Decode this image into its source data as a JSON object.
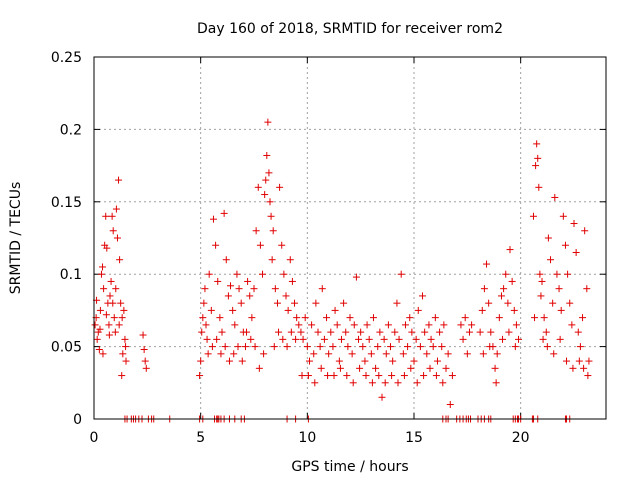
{
  "chart_data": {
    "type": "scatter",
    "title": "Day 160 of 2018, SRMTID for receiver rom2",
    "xlabel": "GPS time / hours",
    "ylabel": "SRMTID / TECUs",
    "xlim": [
      0,
      24
    ],
    "ylim": [
      0,
      0.25
    ],
    "x_ticks": [
      "0",
      "5",
      "10",
      "15",
      "20"
    ],
    "x_tick_values": [
      0,
      5,
      10,
      15,
      20
    ],
    "y_ticks": [
      "0",
      "0.05",
      "0.1",
      "0.15",
      "0.2",
      "0.25"
    ],
    "y_tick_values": [
      0,
      0.05,
      0.1,
      0.15,
      0.2,
      0.25
    ],
    "grid": true,
    "marker": "+",
    "color": "#e00000",
    "series": [
      {
        "name": "rom2",
        "points": [
          [
            0.05,
            0.065
          ],
          [
            0.1,
            0.07
          ],
          [
            0.15,
            0.055
          ],
          [
            0.2,
            0.06
          ],
          [
            0.25,
            0.048
          ],
          [
            0.3,
            0.075
          ],
          [
            0.35,
            0.1
          ],
          [
            0.4,
            0.105
          ],
          [
            0.45,
            0.09
          ],
          [
            0.5,
            0.12
          ],
          [
            0.55,
            0.14
          ],
          [
            0.6,
            0.118
          ],
          [
            0.65,
            0.08
          ],
          [
            0.7,
            0.065
          ],
          [
            0.75,
            0.085
          ],
          [
            0.8,
            0.095
          ],
          [
            0.85,
            0.14
          ],
          [
            0.9,
            0.13
          ],
          [
            0.95,
            0.07
          ],
          [
            1.0,
            0.06
          ],
          [
            1.05,
            0.145
          ],
          [
            1.1,
            0.125
          ],
          [
            1.15,
            0.165
          ],
          [
            1.2,
            0.11
          ],
          [
            1.25,
            0.08
          ],
          [
            1.3,
            0.03
          ],
          [
            1.35,
            0.045
          ],
          [
            1.4,
            0.075
          ],
          [
            1.45,
            0.055
          ],
          [
            1.5,
            0.04
          ],
          [
            0.12,
            0.082
          ],
          [
            0.28,
            0.062
          ],
          [
            0.42,
            0.045
          ],
          [
            0.58,
            0.072
          ],
          [
            0.72,
            0.058
          ],
          [
            0.88,
            0.08
          ],
          [
            1.02,
            0.09
          ],
          [
            1.18,
            0.065
          ],
          [
            1.32,
            0.07
          ],
          [
            1.48,
            0.05
          ],
          [
            2.3,
            0.058
          ],
          [
            2.35,
            0.048
          ],
          [
            2.4,
            0.04
          ],
          [
            2.45,
            0.035
          ],
          [
            4.95,
            0.03
          ],
          [
            5.0,
            0.04
          ],
          [
            5.05,
            0.06
          ],
          [
            5.1,
            0.07
          ],
          [
            5.15,
            0.08
          ],
          [
            5.2,
            0.09
          ],
          [
            5.25,
            0.065
          ],
          [
            5.3,
            0.055
          ],
          [
            5.4,
            0.1
          ],
          [
            5.5,
            0.075
          ],
          [
            5.6,
            0.138
          ],
          [
            5.7,
            0.12
          ],
          [
            5.8,
            0.095
          ],
          [
            5.9,
            0.07
          ],
          [
            6.0,
            0.06
          ],
          [
            6.1,
            0.142
          ],
          [
            6.2,
            0.11
          ],
          [
            6.3,
            0.085
          ],
          [
            6.4,
            0.092
          ],
          [
            6.5,
            0.075
          ],
          [
            6.6,
            0.065
          ],
          [
            6.7,
            0.1
          ],
          [
            6.8,
            0.09
          ],
          [
            6.9,
            0.08
          ],
          [
            7.0,
            0.06
          ],
          [
            7.1,
            0.05
          ],
          [
            7.2,
            0.095
          ],
          [
            7.3,
            0.085
          ],
          [
            7.4,
            0.07
          ],
          [
            7.5,
            0.09
          ],
          [
            7.6,
            0.13
          ],
          [
            7.7,
            0.16
          ],
          [
            7.8,
            0.12
          ],
          [
            7.9,
            0.1
          ],
          [
            8.0,
            0.155
          ],
          [
            8.05,
            0.165
          ],
          [
            8.1,
            0.182
          ],
          [
            8.15,
            0.205
          ],
          [
            8.2,
            0.17
          ],
          [
            8.25,
            0.15
          ],
          [
            8.3,
            0.14
          ],
          [
            8.35,
            0.11
          ],
          [
            8.4,
            0.13
          ],
          [
            8.5,
            0.09
          ],
          [
            8.6,
            0.08
          ],
          [
            8.7,
            0.16
          ],
          [
            8.8,
            0.12
          ],
          [
            8.9,
            0.1
          ],
          [
            9.0,
            0.085
          ],
          [
            9.1,
            0.075
          ],
          [
            9.2,
            0.11
          ],
          [
            9.3,
            0.095
          ],
          [
            9.4,
            0.08
          ],
          [
            9.5,
            0.07
          ],
          [
            9.6,
            0.065
          ],
          [
            5.35,
            0.045
          ],
          [
            5.55,
            0.05
          ],
          [
            5.75,
            0.055
          ],
          [
            5.95,
            0.045
          ],
          [
            6.15,
            0.05
          ],
          [
            6.35,
            0.04
          ],
          [
            6.55,
            0.045
          ],
          [
            6.75,
            0.05
          ],
          [
            6.95,
            0.04
          ],
          [
            7.15,
            0.06
          ],
          [
            7.35,
            0.055
          ],
          [
            7.55,
            0.05
          ],
          [
            7.75,
            0.035
          ],
          [
            7.95,
            0.045
          ],
          [
            8.45,
            0.05
          ],
          [
            8.65,
            0.06
          ],
          [
            8.85,
            0.055
          ],
          [
            9.05,
            0.05
          ],
          [
            9.25,
            0.06
          ],
          [
            9.45,
            0.055
          ],
          [
            9.7,
            0.06
          ],
          [
            9.8,
            0.055
          ],
          [
            9.9,
            0.07
          ],
          [
            10.0,
            0.05
          ],
          [
            10.1,
            0.04
          ],
          [
            10.2,
            0.065
          ],
          [
            10.3,
            0.045
          ],
          [
            10.4,
            0.08
          ],
          [
            10.5,
            0.06
          ],
          [
            10.6,
            0.05
          ],
          [
            10.7,
            0.09
          ],
          [
            10.8,
            0.055
          ],
          [
            10.9,
            0.07
          ],
          [
            11.0,
            0.045
          ],
          [
            11.1,
            0.06
          ],
          [
            11.2,
            0.05
          ],
          [
            11.3,
            0.075
          ],
          [
            11.4,
            0.065
          ],
          [
            11.5,
            0.04
          ],
          [
            11.6,
            0.055
          ],
          [
            11.7,
            0.08
          ],
          [
            11.8,
            0.06
          ],
          [
            11.9,
            0.05
          ],
          [
            12.0,
            0.07
          ],
          [
            12.1,
            0.045
          ],
          [
            12.2,
            0.065
          ],
          [
            12.3,
            0.098
          ],
          [
            12.4,
            0.055
          ],
          [
            12.5,
            0.06
          ],
          [
            12.6,
            0.05
          ],
          [
            12.7,
            0.04
          ],
          [
            12.8,
            0.065
          ],
          [
            12.9,
            0.055
          ],
          [
            13.0,
            0.045
          ],
          [
            13.1,
            0.07
          ],
          [
            13.2,
            0.035
          ],
          [
            13.3,
            0.05
          ],
          [
            13.4,
            0.06
          ],
          [
            13.5,
            0.015
          ],
          [
            13.6,
            0.055
          ],
          [
            13.7,
            0.045
          ],
          [
            13.8,
            0.065
          ],
          [
            13.9,
            0.05
          ],
          [
            14.0,
            0.04
          ],
          [
            14.1,
            0.06
          ],
          [
            14.2,
            0.08
          ],
          [
            14.3,
            0.055
          ],
          [
            14.4,
            0.1
          ],
          [
            14.5,
            0.045
          ],
          [
            14.6,
            0.065
          ],
          [
            14.7,
            0.05
          ],
          [
            14.8,
            0.07
          ],
          [
            14.9,
            0.06
          ],
          [
            15.0,
            0.04
          ],
          [
            15.1,
            0.055
          ],
          [
            15.2,
            0.075
          ],
          [
            15.3,
            0.05
          ],
          [
            15.4,
            0.085
          ],
          [
            15.5,
            0.06
          ],
          [
            15.6,
            0.045
          ],
          [
            15.7,
            0.065
          ],
          [
            15.8,
            0.055
          ],
          [
            15.9,
            0.05
          ],
          [
            16.0,
            0.07
          ],
          [
            16.1,
            0.04
          ],
          [
            16.2,
            0.06
          ],
          [
            16.3,
            0.05
          ],
          [
            16.4,
            0.065
          ],
          [
            16.5,
            0.035
          ],
          [
            16.6,
            0.045
          ],
          [
            16.7,
            0.01
          ],
          [
            16.8,
            0.03
          ],
          [
            9.75,
            0.03
          ],
          [
            10.05,
            0.03
          ],
          [
            10.35,
            0.025
          ],
          [
            10.65,
            0.035
          ],
          [
            10.95,
            0.03
          ],
          [
            11.25,
            0.03
          ],
          [
            11.55,
            0.035
          ],
          [
            11.85,
            0.03
          ],
          [
            12.15,
            0.025
          ],
          [
            12.45,
            0.035
          ],
          [
            12.75,
            0.03
          ],
          [
            13.05,
            0.025
          ],
          [
            13.35,
            0.03
          ],
          [
            13.65,
            0.025
          ],
          [
            13.95,
            0.03
          ],
          [
            14.25,
            0.025
          ],
          [
            14.55,
            0.03
          ],
          [
            14.85,
            0.035
          ],
          [
            15.15,
            0.025
          ],
          [
            15.45,
            0.03
          ],
          [
            15.75,
            0.035
          ],
          [
            16.05,
            0.03
          ],
          [
            16.35,
            0.025
          ],
          [
            17.2,
            0.065
          ],
          [
            17.3,
            0.055
          ],
          [
            17.4,
            0.07
          ],
          [
            17.5,
            0.045
          ],
          [
            17.6,
            0.06
          ],
          [
            17.7,
            0.065
          ],
          [
            18.1,
            0.06
          ],
          [
            18.2,
            0.075
          ],
          [
            18.3,
            0.09
          ],
          [
            18.4,
            0.107
          ],
          [
            18.5,
            0.08
          ],
          [
            18.6,
            0.06
          ],
          [
            18.7,
            0.05
          ],
          [
            18.8,
            0.035
          ],
          [
            18.9,
            0.045
          ],
          [
            19.0,
            0.07
          ],
          [
            19.1,
            0.085
          ],
          [
            19.2,
            0.09
          ],
          [
            19.3,
            0.1
          ],
          [
            19.4,
            0.08
          ],
          [
            19.5,
            0.117
          ],
          [
            19.6,
            0.095
          ],
          [
            19.7,
            0.075
          ],
          [
            19.8,
            0.065
          ],
          [
            19.9,
            0.055
          ],
          [
            18.25,
            0.045
          ],
          [
            18.55,
            0.05
          ],
          [
            18.85,
            0.025
          ],
          [
            19.15,
            0.055
          ],
          [
            19.45,
            0.06
          ],
          [
            19.75,
            0.05
          ],
          [
            20.6,
            0.14
          ],
          [
            20.7,
            0.175
          ],
          [
            20.75,
            0.19
          ],
          [
            20.8,
            0.18
          ],
          [
            20.85,
            0.16
          ],
          [
            20.9,
            0.1
          ],
          [
            20.95,
            0.085
          ],
          [
            21.0,
            0.095
          ],
          [
            21.1,
            0.07
          ],
          [
            21.2,
            0.06
          ],
          [
            21.3,
            0.125
          ],
          [
            21.4,
            0.11
          ],
          [
            21.5,
            0.08
          ],
          [
            21.6,
            0.153
          ],
          [
            21.7,
            0.1
          ],
          [
            21.8,
            0.09
          ],
          [
            21.9,
            0.075
          ],
          [
            22.0,
            0.14
          ],
          [
            22.1,
            0.12
          ],
          [
            22.2,
            0.1
          ],
          [
            22.3,
            0.08
          ],
          [
            22.4,
            0.065
          ],
          [
            22.5,
            0.135
          ],
          [
            22.6,
            0.115
          ],
          [
            22.7,
            0.06
          ],
          [
            22.8,
            0.05
          ],
          [
            22.9,
            0.07
          ],
          [
            23.0,
            0.13
          ],
          [
            23.1,
            0.09
          ],
          [
            23.2,
            0.04
          ],
          [
            20.65,
            0.07
          ],
          [
            21.05,
            0.055
          ],
          [
            21.25,
            0.05
          ],
          [
            21.55,
            0.045
          ],
          [
            21.85,
            0.055
          ],
          [
            22.15,
            0.04
          ],
          [
            22.45,
            0.035
          ],
          [
            22.75,
            0.04
          ],
          [
            22.95,
            0.035
          ],
          [
            23.15,
            0.03
          ]
        ]
      }
    ],
    "zero_points_x": [
      1.45,
      1.55,
      1.75,
      1.85,
      1.95,
      2.1,
      2.25,
      2.55,
      2.7,
      2.8,
      3.55,
      4.95,
      5.1,
      5.65,
      5.75,
      5.8,
      5.85,
      5.95,
      6.1,
      6.35,
      6.6,
      6.9,
      7.05,
      9.05,
      9.45,
      10.05,
      16.35,
      16.5,
      16.6,
      17.0,
      17.15,
      17.3,
      17.45,
      17.55,
      17.65,
      18.0,
      18.15,
      18.3,
      18.5,
      18.6,
      19.65,
      19.75,
      19.85,
      19.9,
      20.0,
      20.55,
      20.6,
      20.8,
      22.1,
      22.15,
      22.3
    ]
  }
}
